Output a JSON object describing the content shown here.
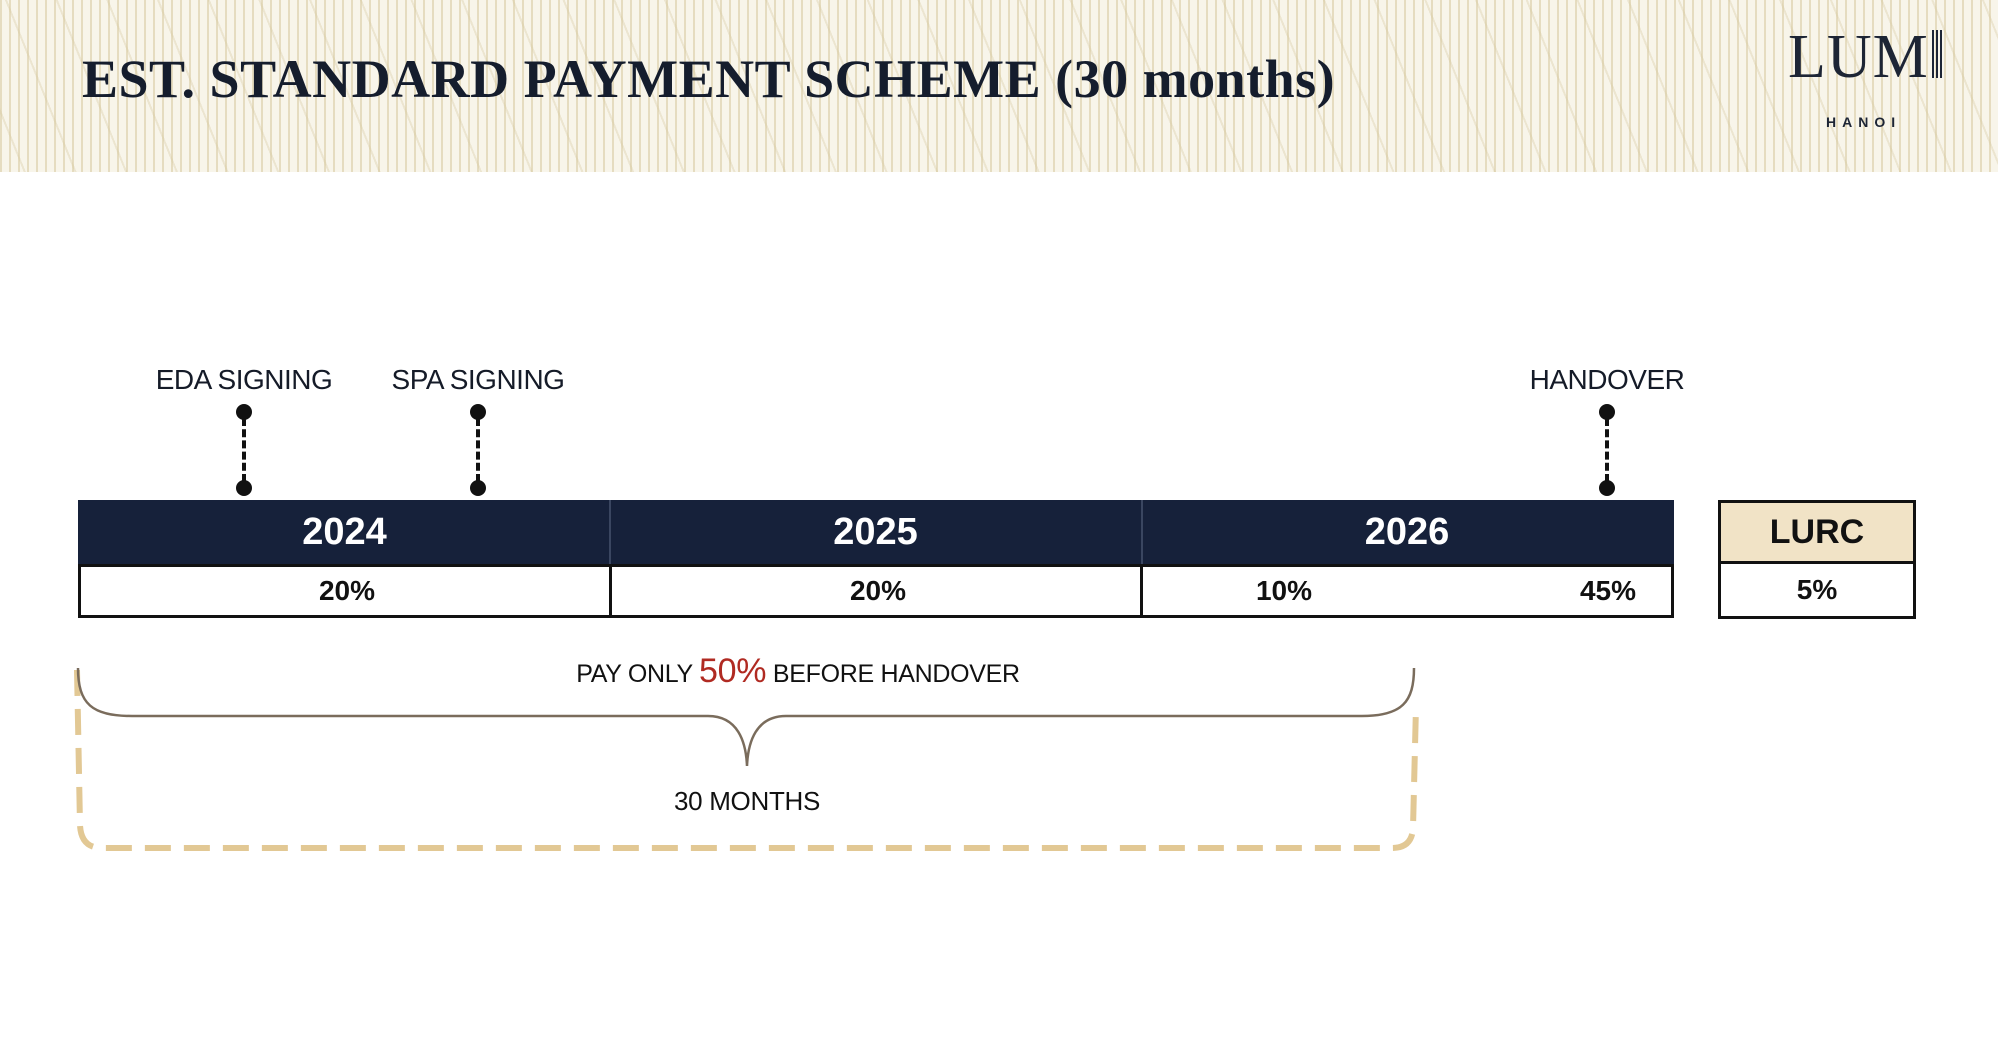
{
  "header": {
    "title": "EST. STANDARD PAYMENT SCHEME (30 months)",
    "logo_word": "LUM",
    "logo_city": "HANOI"
  },
  "milestones": [
    {
      "label": "EDA SIGNING"
    },
    {
      "label": "SPA SIGNING"
    },
    {
      "label": "HANDOVER"
    }
  ],
  "years": [
    {
      "label": "2024",
      "payments": [
        "20%"
      ]
    },
    {
      "label": "2025",
      "payments": [
        "20%"
      ]
    },
    {
      "label": "2026",
      "payments": [
        "10%",
        "45%"
      ]
    }
  ],
  "lurc": {
    "label": "LURC",
    "value": "5%"
  },
  "note": {
    "prefix": "PAY ONLY ",
    "highlight": "50%",
    "suffix": " BEFORE HANDOVER",
    "highlight_color": "#b02a22"
  },
  "duration_label": "30 MONTHS",
  "colors": {
    "navy": "#16213a",
    "beige": "#f1e3c6",
    "dashed_border": "#e2c894",
    "brace": "#7a6c5c"
  }
}
